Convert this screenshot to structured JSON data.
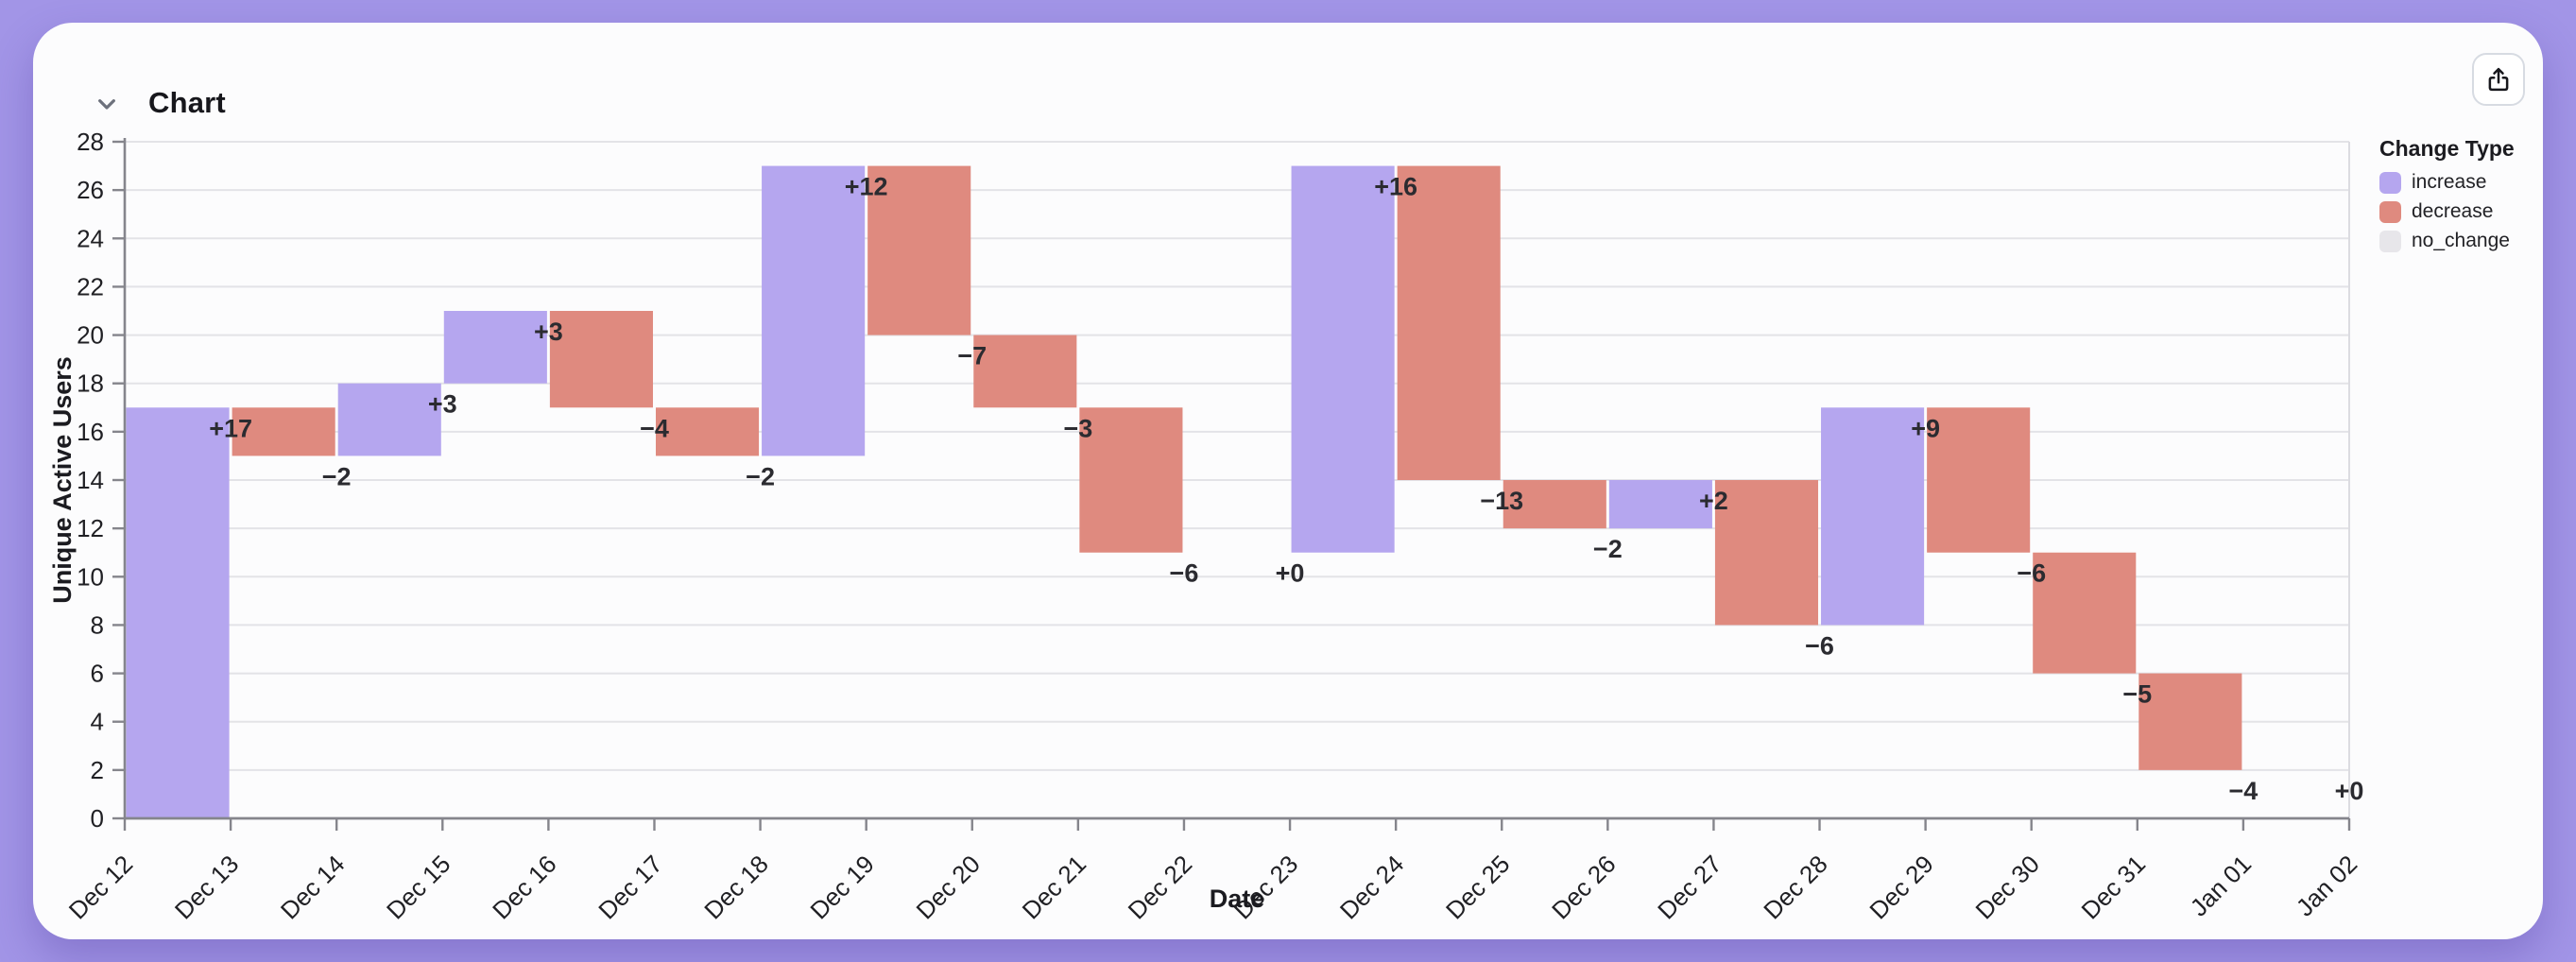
{
  "page": {
    "background_color": "#a295e7"
  },
  "header": {
    "title": "Chart",
    "collapse_icon": "chevron-down-icon",
    "share_icon": "share-icon"
  },
  "legend": {
    "title": "Change Type",
    "items": [
      {
        "label": "increase",
        "color": "#b5a6ef"
      },
      {
        "label": "decrease",
        "color": "#df8a7f"
      },
      {
        "label": "no_change",
        "color": "#e7e6ea"
      }
    ]
  },
  "chart_data": {
    "type": "bar",
    "subtype": "waterfall",
    "title": "",
    "xlabel": "Date",
    "ylabel": "Unique Active Users",
    "ylim": [
      0,
      28
    ],
    "y_ticks": [
      0,
      2,
      4,
      6,
      8,
      10,
      12,
      14,
      16,
      18,
      20,
      22,
      24,
      26,
      28
    ],
    "grid": true,
    "legend_position": "right",
    "x_ticks": [
      "Dec 12",
      "Dec 13",
      "Dec 14",
      "Dec 15",
      "Dec 16",
      "Dec 17",
      "Dec 18",
      "Dec 19",
      "Dec 20",
      "Dec 21",
      "Dec 22",
      "Dec 23",
      "Dec 24",
      "Dec 25",
      "Dec 26",
      "Dec 27",
      "Dec 28",
      "Dec 29",
      "Dec 30",
      "Dec 31",
      "Jan 01",
      "Jan 02"
    ],
    "bars": [
      {
        "date": "Dec 12",
        "change": 17,
        "label": "+17",
        "type": "increase",
        "start": 0,
        "end": 17
      },
      {
        "date": "Dec 13",
        "change": -2,
        "label": "−2",
        "type": "decrease",
        "start": 17,
        "end": 15
      },
      {
        "date": "Dec 14",
        "change": 3,
        "label": "+3",
        "type": "increase",
        "start": 15,
        "end": 18
      },
      {
        "date": "Dec 15",
        "change": 3,
        "label": "+3",
        "type": "increase",
        "start": 18,
        "end": 21
      },
      {
        "date": "Dec 16",
        "change": -4,
        "label": "−4",
        "type": "decrease",
        "start": 21,
        "end": 17
      },
      {
        "date": "Dec 17",
        "change": -2,
        "label": "−2",
        "type": "decrease",
        "start": 17,
        "end": 15
      },
      {
        "date": "Dec 18",
        "change": 12,
        "label": "+12",
        "type": "increase",
        "start": 15,
        "end": 27
      },
      {
        "date": "Dec 19",
        "change": -7,
        "label": "−7",
        "type": "decrease",
        "start": 27,
        "end": 20
      },
      {
        "date": "Dec 20",
        "change": -3,
        "label": "−3",
        "type": "decrease",
        "start": 20,
        "end": 17
      },
      {
        "date": "Dec 21",
        "change": -6,
        "label": "−6",
        "type": "decrease",
        "start": 17,
        "end": 11
      },
      {
        "date": "Dec 22",
        "change": 0,
        "label": "+0",
        "type": "no_change",
        "start": 11,
        "end": 11
      },
      {
        "date": "Dec 23",
        "change": 16,
        "label": "+16",
        "type": "increase",
        "start": 11,
        "end": 27
      },
      {
        "date": "Dec 24",
        "change": -13,
        "label": "−13",
        "type": "decrease",
        "start": 27,
        "end": 14
      },
      {
        "date": "Dec 25",
        "change": -2,
        "label": "−2",
        "type": "decrease",
        "start": 14,
        "end": 12
      },
      {
        "date": "Dec 26",
        "change": 2,
        "label": "+2",
        "type": "increase",
        "start": 12,
        "end": 14
      },
      {
        "date": "Dec 27",
        "change": -6,
        "label": "−6",
        "type": "decrease",
        "start": 14,
        "end": 8
      },
      {
        "date": "Dec 28",
        "change": 9,
        "label": "+9",
        "type": "increase",
        "start": 8,
        "end": 17
      },
      {
        "date": "Dec 29",
        "change": -6,
        "label": "−6",
        "type": "decrease",
        "start": 17,
        "end": 11
      },
      {
        "date": "Dec 30",
        "change": -5,
        "label": "−5",
        "type": "decrease",
        "start": 11,
        "end": 6
      },
      {
        "date": "Dec 31",
        "change": -4,
        "label": "−4",
        "type": "decrease",
        "start": 6,
        "end": 2
      },
      {
        "date": "Jan 01",
        "change": 0,
        "label": "+0",
        "type": "no_change",
        "start": 2,
        "end": 2
      }
    ],
    "colors": {
      "increase": "#b5a6ef",
      "decrease": "#df8a7f",
      "no_change": "#e7e6ea",
      "grid": "#e3e3e7",
      "axis": "#85858c",
      "right_spine": "#dcdce1",
      "tick_text": "#202024",
      "bar_label_text": "#2b2b30"
    }
  }
}
